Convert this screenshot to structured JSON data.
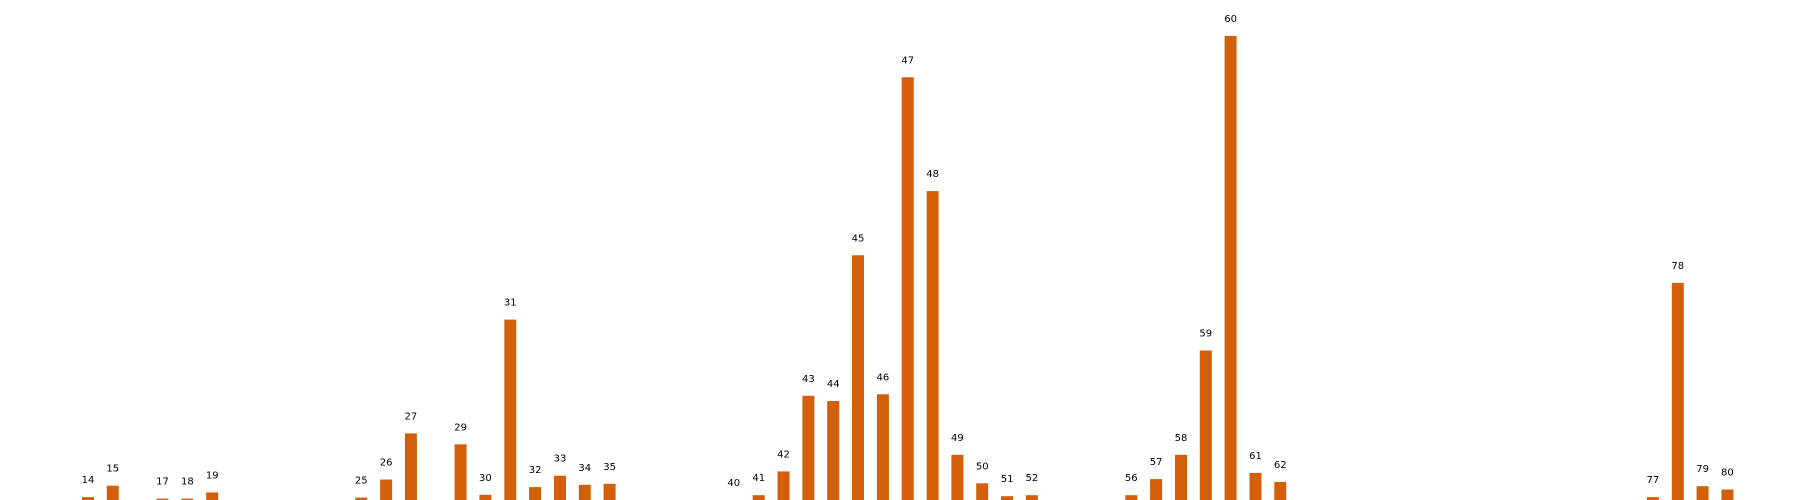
{
  "chart_data": {
    "type": "bar",
    "title": "",
    "xlabel": "",
    "ylabel": "",
    "grid": false,
    "legend": "none",
    "bar_color": "#d35f0b",
    "xlim": [
      11,
      82
    ],
    "ylim": [
      0,
      100
    ],
    "bars": [
      {
        "x": 14,
        "label": "14",
        "value": 0.6
      },
      {
        "x": 15,
        "label": "15",
        "value": 3.0
      },
      {
        "x": 17,
        "label": "17",
        "value": 0.3
      },
      {
        "x": 18,
        "label": "18",
        "value": 0.3
      },
      {
        "x": 19,
        "label": "19",
        "value": 1.6
      },
      {
        "x": 25,
        "label": "25",
        "value": 0.5
      },
      {
        "x": 26,
        "label": "26",
        "value": 4.3
      },
      {
        "x": 27,
        "label": "27",
        "value": 14.0
      },
      {
        "x": 29,
        "label": "29",
        "value": 11.7
      },
      {
        "x": 30,
        "label": "30",
        "value": 1.1
      },
      {
        "x": 31,
        "label": "31",
        "value": 37.9
      },
      {
        "x": 32,
        "label": "32",
        "value": 2.7
      },
      {
        "x": 33,
        "label": "33",
        "value": 5.1
      },
      {
        "x": 34,
        "label": "34",
        "value": 3.2
      },
      {
        "x": 35,
        "label": "35",
        "value": 3.4
      },
      {
        "x": 40,
        "label": "40",
        "value": 0.0
      },
      {
        "x": 41,
        "label": "41",
        "value": 1.0
      },
      {
        "x": 42,
        "label": "42",
        "value": 6.0
      },
      {
        "x": 43,
        "label": "43",
        "value": 21.9
      },
      {
        "x": 44,
        "label": "44",
        "value": 20.8
      },
      {
        "x": 45,
        "label": "45",
        "value": 51.4
      },
      {
        "x": 46,
        "label": "46",
        "value": 22.2
      },
      {
        "x": 47,
        "label": "47",
        "value": 88.8
      },
      {
        "x": 48,
        "label": "48",
        "value": 64.9
      },
      {
        "x": 49,
        "label": "49",
        "value": 9.5
      },
      {
        "x": 50,
        "label": "50",
        "value": 3.5
      },
      {
        "x": 51,
        "label": "51",
        "value": 0.8
      },
      {
        "x": 52,
        "label": "52",
        "value": 1.0
      },
      {
        "x": 56,
        "label": "56",
        "value": 1.0
      },
      {
        "x": 57,
        "label": "57",
        "value": 4.4
      },
      {
        "x": 58,
        "label": "58",
        "value": 9.5
      },
      {
        "x": 59,
        "label": "59",
        "value": 31.4
      },
      {
        "x": 60,
        "label": "60",
        "value": 97.5
      },
      {
        "x": 61,
        "label": "61",
        "value": 5.7
      },
      {
        "x": 62,
        "label": "62",
        "value": 3.8
      },
      {
        "x": 77,
        "label": "77",
        "value": 0.6
      },
      {
        "x": 78,
        "label": "78",
        "value": 45.6
      },
      {
        "x": 79,
        "label": "79",
        "value": 2.9
      },
      {
        "x": 80,
        "label": "80",
        "value": 2.2
      }
    ]
  }
}
